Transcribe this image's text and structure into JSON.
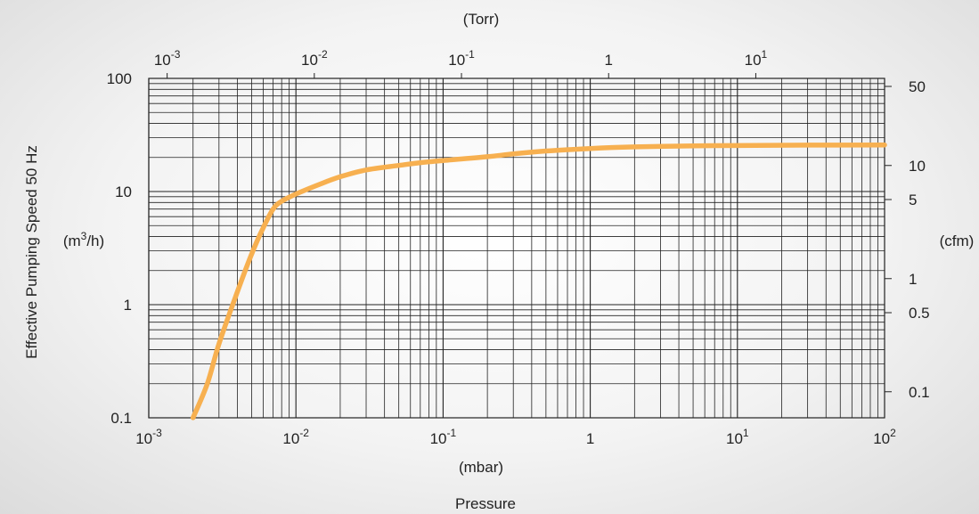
{
  "chart_data": {
    "type": "line",
    "x_scale": "log",
    "y_scale": "log",
    "xlim": [
      0.001,
      100
    ],
    "ylim": [
      0.1,
      100
    ],
    "grid": true,
    "bottom_axis": {
      "unit_label": "(mbar)",
      "quantity_label": "Pressure",
      "ticks": [
        {
          "value": 0.001,
          "base": "10",
          "exp": "-3"
        },
        {
          "value": 0.01,
          "base": "10",
          "exp": "-2"
        },
        {
          "value": 0.1,
          "base": "10",
          "exp": "-1"
        },
        {
          "value": 1,
          "base": "1",
          "exp": ""
        },
        {
          "value": 10,
          "base": "10",
          "exp": "1"
        },
        {
          "value": 100,
          "base": "10",
          "exp": "2"
        }
      ]
    },
    "top_axis": {
      "unit_label": "(Torr)",
      "ticks": [
        {
          "value": 0.001,
          "base": "10",
          "exp": "-3"
        },
        {
          "value": 0.01,
          "base": "10",
          "exp": "-2"
        },
        {
          "value": 0.1,
          "base": "10",
          "exp": "-1"
        },
        {
          "value": 1,
          "base": "1",
          "exp": ""
        },
        {
          "value": 10,
          "base": "10",
          "exp": "1"
        }
      ]
    },
    "left_axis": {
      "title": "Effective Pumping Speed  50 Hz",
      "unit_label_base": "(m",
      "unit_label_sup": "3",
      "unit_label_end": "/h)",
      "ticks": [
        {
          "value": 100,
          "label": "100"
        },
        {
          "value": 10,
          "label": "10"
        },
        {
          "value": 1,
          "label": "1"
        },
        {
          "value": 0.1,
          "label": "0.1"
        }
      ]
    },
    "right_axis": {
      "unit_label": "(cfm)",
      "ticks": [
        {
          "value": 50,
          "label": "50"
        },
        {
          "value": 10,
          "label": "10"
        },
        {
          "value": 5,
          "label": "5"
        },
        {
          "value": 1,
          "label": "1"
        },
        {
          "value": 0.5,
          "label": "0.5"
        },
        {
          "value": 0.1,
          "label": "0.1"
        }
      ]
    },
    "series": [
      {
        "color": "#f7b050",
        "points": [
          [
            0.002,
            0.1
          ],
          [
            0.0025,
            0.2
          ],
          [
            0.003,
            0.45
          ],
          [
            0.004,
            1.3
          ],
          [
            0.005,
            2.8
          ],
          [
            0.006,
            4.8
          ],
          [
            0.007,
            7.0
          ],
          [
            0.008,
            8.2
          ],
          [
            0.01,
            9.5
          ],
          [
            0.015,
            11.8
          ],
          [
            0.02,
            13.5
          ],
          [
            0.03,
            15.5
          ],
          [
            0.05,
            17.0
          ],
          [
            0.07,
            18.0
          ],
          [
            0.1,
            18.8
          ],
          [
            0.2,
            20.3
          ],
          [
            0.3,
            21.5
          ],
          [
            0.5,
            22.8
          ],
          [
            1,
            24.0
          ],
          [
            2,
            24.8
          ],
          [
            5,
            25.3
          ],
          [
            10,
            25.5
          ],
          [
            30,
            25.7
          ],
          [
            100,
            25.8
          ]
        ]
      }
    ]
  }
}
